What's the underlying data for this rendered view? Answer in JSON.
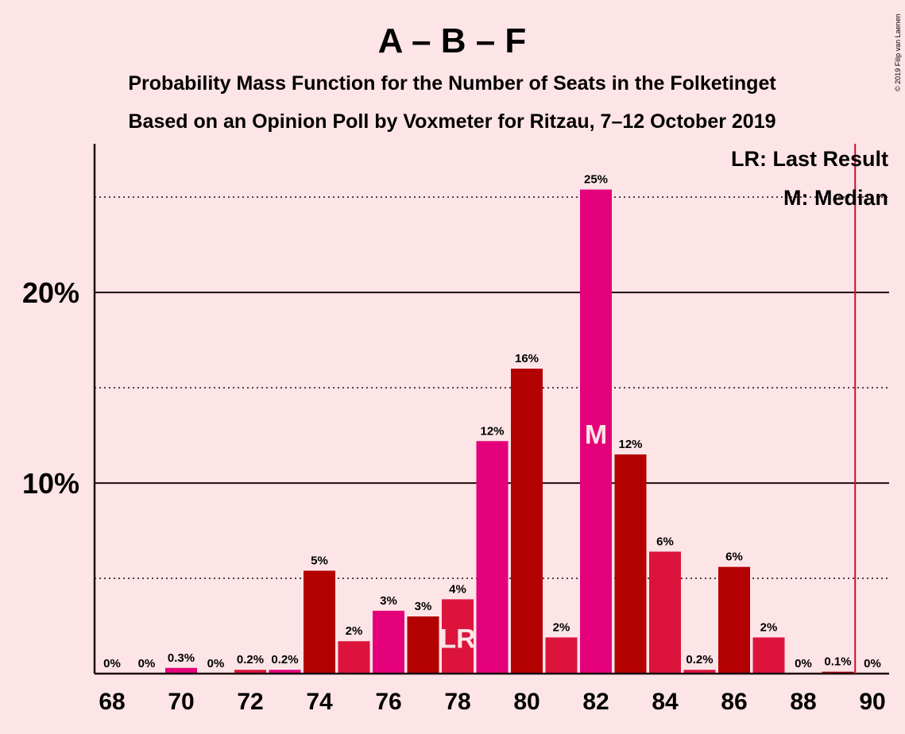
{
  "chart_data": {
    "type": "bar",
    "title": "A – B – F",
    "subtitle_1": "Probability Mass Function for the Number of Seats in the Folketinget",
    "subtitle_2": "Based on an Opinion Poll by Voxmeter for Ritzau, 7–12 October 2019",
    "copyright": "© 2019 Filip van Laenen",
    "legend": {
      "lr": "LR: Last Result",
      "median": "M: Median",
      "placement": "top-right"
    },
    "categories": [
      68,
      69,
      70,
      71,
      72,
      73,
      74,
      75,
      76,
      77,
      78,
      79,
      80,
      81,
      82,
      83,
      84,
      85,
      86,
      87,
      88,
      89,
      90
    ],
    "values": [
      0,
      0,
      0.3,
      0,
      0.2,
      0.2,
      5.4,
      1.7,
      3.3,
      3.0,
      3.9,
      12.2,
      16.0,
      1.9,
      25.4,
      11.5,
      6.4,
      0.2,
      5.6,
      1.9,
      0,
      0.1,
      0
    ],
    "labels": [
      "0%",
      "0%",
      "0.3%",
      "0%",
      "0.2%",
      "0.2%",
      "5%",
      "2%",
      "3%",
      "3%",
      "4%",
      "12%",
      "16%",
      "2%",
      "25%",
      "12%",
      "6%",
      "0.2%",
      "6%",
      "2%",
      "0%",
      "0.1%",
      "0%"
    ],
    "bar_colors": [
      "#b30000",
      "#e3007a",
      "#e3007a",
      "#dc143c",
      "#dc143c",
      "#e3007a",
      "#b30000",
      "#dc143c",
      "#e3007a",
      "#b30000",
      "#dc143c",
      "#e3007a",
      "#b30000",
      "#dc143c",
      "#e3007a",
      "#b30000",
      "#dc143c",
      "#dc143c",
      "#b30000",
      "#dc143c",
      "#dc143c",
      "#b30000",
      "#dc143c"
    ],
    "x_tick_labels": [
      "68",
      "70",
      "72",
      "74",
      "76",
      "78",
      "80",
      "82",
      "84",
      "86",
      "88",
      "90"
    ],
    "y_tick_labels": [
      "10%",
      "20%"
    ],
    "ylim": [
      0,
      27.8
    ],
    "solid_grid": [
      10,
      20
    ],
    "dotted_grid": [
      5,
      15,
      25
    ],
    "last_result": {
      "seat": 78,
      "marker": "LR"
    },
    "median": {
      "seat": 82,
      "marker": "M"
    },
    "majority_line": 89.5,
    "majority_line_color": "#c8102e"
  }
}
